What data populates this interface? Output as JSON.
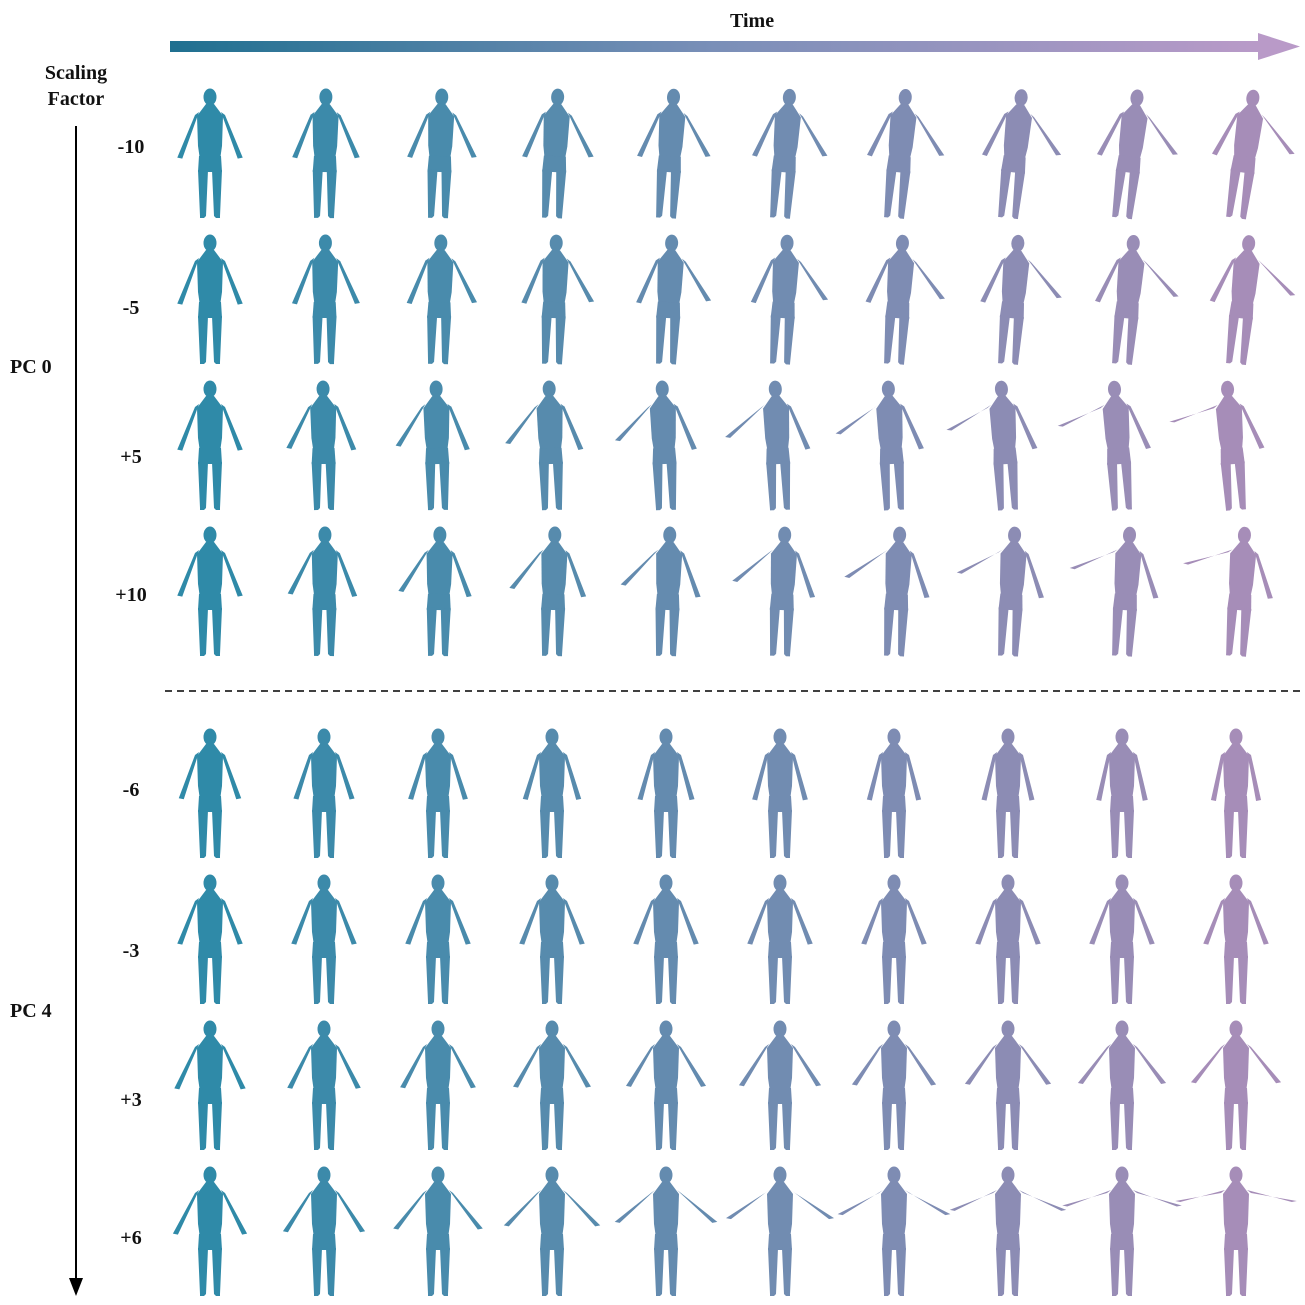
{
  "time_label": "Time",
  "scaling_label_line1": "Scaling",
  "scaling_label_line2": "Factor",
  "groups": [
    {
      "name": "PC 0",
      "rows": [
        "-10",
        "-5",
        "+5",
        "+10"
      ]
    },
    {
      "name": "PC 4",
      "rows": [
        "-6",
        "-3",
        "+3",
        "+6"
      ]
    }
  ],
  "frames_per_row": 10,
  "colors": {
    "start": "#2f8aa8",
    "end": "#a68db8",
    "arrow_start": "#1f7090",
    "arrow_end": "#b99ac8"
  }
}
